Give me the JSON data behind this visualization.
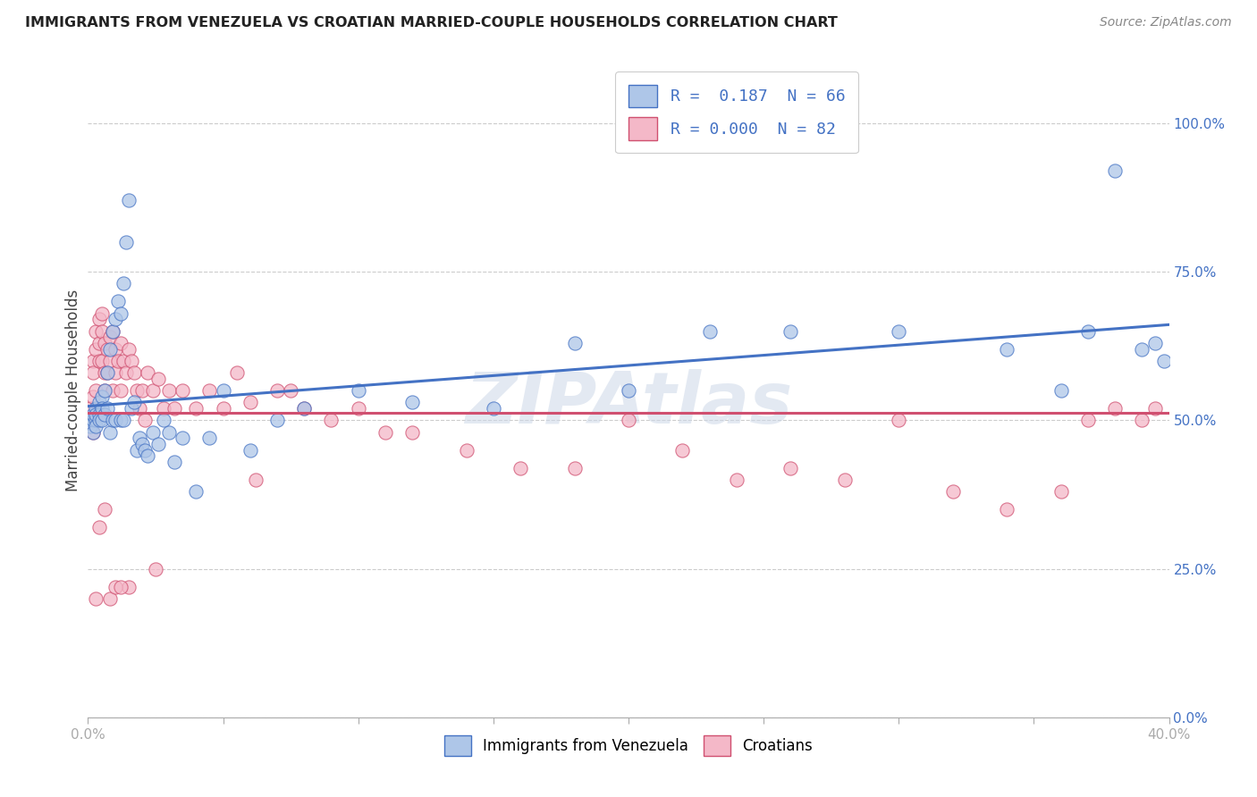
{
  "title": "IMMIGRANTS FROM VENEZUELA VS CROATIAN MARRIED-COUPLE HOUSEHOLDS CORRELATION CHART",
  "source": "Source: ZipAtlas.com",
  "ylabel": "Married-couple Households",
  "ylabel_right_ticks": [
    "0.0%",
    "25.0%",
    "50.0%",
    "75.0%",
    "100.0%"
  ],
  "ylabel_right_vals": [
    0.0,
    0.25,
    0.5,
    0.75,
    1.0
  ],
  "xmin": 0.0,
  "xmax": 0.4,
  "ymin": 0.0,
  "ymax": 1.1,
  "blue_R": "0.187",
  "blue_N": "66",
  "pink_R": "0.000",
  "pink_N": "82",
  "blue_color": "#aec6e8",
  "pink_color": "#f4b8c8",
  "blue_line_color": "#4472c4",
  "pink_line_color": "#d05070",
  "watermark": "ZIPAtlas",
  "legend_label_blue": "Immigrants from Venezuela",
  "legend_label_pink": "Croatians",
  "blue_scatter_x": [
    0.001,
    0.001,
    0.002,
    0.002,
    0.002,
    0.003,
    0.003,
    0.003,
    0.003,
    0.004,
    0.004,
    0.004,
    0.005,
    0.005,
    0.005,
    0.006,
    0.006,
    0.007,
    0.007,
    0.008,
    0.008,
    0.009,
    0.009,
    0.01,
    0.01,
    0.011,
    0.012,
    0.012,
    0.013,
    0.013,
    0.014,
    0.015,
    0.016,
    0.017,
    0.018,
    0.019,
    0.02,
    0.021,
    0.022,
    0.024,
    0.026,
    0.028,
    0.03,
    0.032,
    0.035,
    0.04,
    0.045,
    0.05,
    0.06,
    0.07,
    0.08,
    0.1,
    0.12,
    0.15,
    0.18,
    0.2,
    0.23,
    0.26,
    0.3,
    0.34,
    0.36,
    0.37,
    0.38,
    0.39,
    0.395,
    0.398
  ],
  "blue_scatter_y": [
    0.5,
    0.49,
    0.5,
    0.51,
    0.48,
    0.52,
    0.5,
    0.51,
    0.49,
    0.53,
    0.51,
    0.5,
    0.54,
    0.52,
    0.5,
    0.55,
    0.51,
    0.58,
    0.52,
    0.62,
    0.48,
    0.65,
    0.5,
    0.67,
    0.5,
    0.7,
    0.68,
    0.5,
    0.73,
    0.5,
    0.8,
    0.87,
    0.52,
    0.53,
    0.45,
    0.47,
    0.46,
    0.45,
    0.44,
    0.48,
    0.46,
    0.5,
    0.48,
    0.43,
    0.47,
    0.38,
    0.47,
    0.55,
    0.45,
    0.5,
    0.52,
    0.55,
    0.53,
    0.52,
    0.63,
    0.55,
    0.65,
    0.65,
    0.65,
    0.62,
    0.55,
    0.65,
    0.92,
    0.62,
    0.63,
    0.6
  ],
  "pink_scatter_x": [
    0.001,
    0.001,
    0.002,
    0.002,
    0.002,
    0.003,
    0.003,
    0.003,
    0.004,
    0.004,
    0.004,
    0.005,
    0.005,
    0.005,
    0.006,
    0.006,
    0.006,
    0.007,
    0.007,
    0.008,
    0.008,
    0.009,
    0.009,
    0.01,
    0.01,
    0.011,
    0.012,
    0.012,
    0.013,
    0.014,
    0.015,
    0.016,
    0.017,
    0.018,
    0.019,
    0.02,
    0.021,
    0.022,
    0.024,
    0.026,
    0.028,
    0.03,
    0.032,
    0.035,
    0.04,
    0.045,
    0.05,
    0.055,
    0.06,
    0.07,
    0.08,
    0.09,
    0.1,
    0.11,
    0.12,
    0.14,
    0.16,
    0.18,
    0.2,
    0.22,
    0.24,
    0.26,
    0.28,
    0.3,
    0.32,
    0.34,
    0.36,
    0.37,
    0.38,
    0.39,
    0.062,
    0.075,
    0.025,
    0.015,
    0.008,
    0.01,
    0.012,
    0.006,
    0.004,
    0.003,
    0.002,
    0.395
  ],
  "pink_scatter_y": [
    0.5,
    0.52,
    0.54,
    0.6,
    0.58,
    0.62,
    0.65,
    0.55,
    0.63,
    0.67,
    0.6,
    0.65,
    0.68,
    0.6,
    0.63,
    0.58,
    0.55,
    0.62,
    0.58,
    0.64,
    0.6,
    0.65,
    0.55,
    0.62,
    0.58,
    0.6,
    0.63,
    0.55,
    0.6,
    0.58,
    0.62,
    0.6,
    0.58,
    0.55,
    0.52,
    0.55,
    0.5,
    0.58,
    0.55,
    0.57,
    0.52,
    0.55,
    0.52,
    0.55,
    0.52,
    0.55,
    0.52,
    0.58,
    0.53,
    0.55,
    0.52,
    0.5,
    0.52,
    0.48,
    0.48,
    0.45,
    0.42,
    0.42,
    0.5,
    0.45,
    0.4,
    0.42,
    0.4,
    0.5,
    0.38,
    0.35,
    0.38,
    0.5,
    0.52,
    0.5,
    0.4,
    0.55,
    0.25,
    0.22,
    0.2,
    0.22,
    0.22,
    0.35,
    0.32,
    0.2,
    0.48,
    0.52
  ]
}
